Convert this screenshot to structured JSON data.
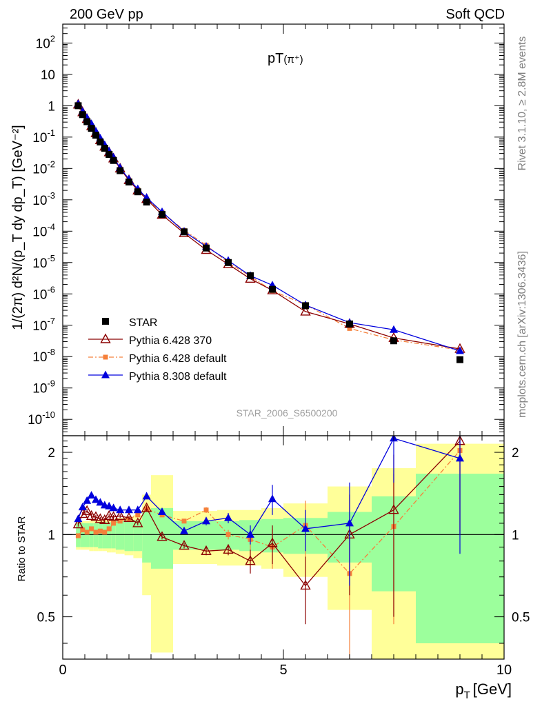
{
  "header": {
    "left": "200 GeV pp",
    "right": "Soft QCD"
  },
  "side_labels": {
    "top": "Rivet 3.1.10, ≥ 2.8M events",
    "bottom": "mcplots.cern.ch [arXiv:1306.3436]"
  },
  "watermark": "STAR_2006_S6500200",
  "chart_data": {
    "type": "scatter",
    "title": "pT(π⁺)",
    "title_main": "pT",
    "title_sub": "(π⁺)",
    "xlabel": "p",
    "xlabel_sub": "T",
    "xlabel_unit": "[GeV]",
    "ylabel": "1/(2π) d²N/(p_T dy dp_T) [GeV⁻²]",
    "ratio_ylabel": "Ratio to STAR",
    "xlim": [
      0,
      10
    ],
    "ylim_log": [
      3e-11,
      400
    ],
    "ratio_ylim": [
      0.35,
      2.3
    ],
    "x_ticks": [
      0,
      5,
      10
    ],
    "x_tick_labels": [
      "0",
      "5",
      "10"
    ],
    "y_ticks": [
      1e-10,
      1e-09,
      1e-08,
      1e-07,
      1e-06,
      1e-05,
      0.0001,
      0.001,
      0.01,
      0.1,
      1,
      10,
      100
    ],
    "y_tick_labels": [
      {
        "base": "10",
        "exp": "-10"
      },
      {
        "base": "10",
        "exp": "-9"
      },
      {
        "base": "10",
        "exp": "-8"
      },
      {
        "base": "10",
        "exp": "-7"
      },
      {
        "base": "10",
        "exp": "-6"
      },
      {
        "base": "10",
        "exp": "-5"
      },
      {
        "base": "10",
        "exp": "-4"
      },
      {
        "base": "10",
        "exp": "-3"
      },
      {
        "base": "10",
        "exp": "-2"
      },
      {
        "base": "10",
        "exp": "-1"
      },
      {
        "base": "1",
        "exp": ""
      },
      {
        "base": "10",
        "exp": ""
      },
      {
        "base": "10",
        "exp": "2"
      }
    ],
    "ratio_ticks": [
      0.5,
      1,
      2
    ],
    "ratio_tick_labels": [
      "0.5",
      "1",
      "2"
    ],
    "colors": {
      "star": "#000000",
      "p6_370": "#8b0000",
      "p6_default": "#f5803a",
      "p8": "#0000dd",
      "band_inner": "#9cff9c",
      "band_outer": "#ffff99"
    },
    "x": [
      0.35,
      0.45,
      0.55,
      0.65,
      0.75,
      0.85,
      0.95,
      1.05,
      1.15,
      1.3,
      1.5,
      1.7,
      1.9,
      2.25,
      2.75,
      3.25,
      3.75,
      4.25,
      4.75,
      5.5,
      6.5,
      7.5,
      9.0
    ],
    "bins": [
      [
        0.3,
        0.4
      ],
      [
        0.4,
        0.5
      ],
      [
        0.5,
        0.6
      ],
      [
        0.6,
        0.7
      ],
      [
        0.7,
        0.8
      ],
      [
        0.8,
        0.9
      ],
      [
        0.9,
        1.0
      ],
      [
        1.0,
        1.1
      ],
      [
        1.1,
        1.2
      ],
      [
        1.2,
        1.4
      ],
      [
        1.4,
        1.6
      ],
      [
        1.6,
        1.8
      ],
      [
        1.8,
        2.0
      ],
      [
        2.0,
        2.5
      ],
      [
        2.5,
        3.0
      ],
      [
        3.0,
        3.5
      ],
      [
        3.5,
        4.0
      ],
      [
        4.0,
        4.5
      ],
      [
        4.5,
        5.0
      ],
      [
        5.0,
        6.0
      ],
      [
        6.0,
        7.0
      ],
      [
        7.0,
        8.0
      ],
      [
        8.0,
        10.0
      ]
    ],
    "star_values": [
      1.0,
      0.52,
      0.31,
      0.19,
      0.115,
      0.07,
      0.044,
      0.028,
      0.018,
      0.0085,
      0.0037,
      0.0018,
      0.00085,
      0.00034,
      9.5e-05,
      2.9e-05,
      1e-05,
      3.8e-06,
      1.4e-06,
      4.2e-07,
      1.1e-07,
      3.2e-08,
      8e-09
    ],
    "band_inner": [
      [
        0.9,
        1.1
      ],
      [
        0.9,
        1.1
      ],
      [
        0.9,
        1.1
      ],
      [
        0.9,
        1.1
      ],
      [
        0.9,
        1.1
      ],
      [
        0.89,
        1.11
      ],
      [
        0.89,
        1.11
      ],
      [
        0.89,
        1.11
      ],
      [
        0.89,
        1.11
      ],
      [
        0.88,
        1.12
      ],
      [
        0.87,
        1.13
      ],
      [
        0.87,
        1.13
      ],
      [
        0.79,
        1.21
      ],
      [
        0.75,
        1.25
      ],
      [
        0.88,
        1.12
      ],
      [
        0.88,
        1.12
      ],
      [
        0.88,
        1.12
      ],
      [
        0.87,
        1.13
      ],
      [
        0.86,
        1.14
      ],
      [
        0.85,
        1.15
      ],
      [
        0.79,
        1.21
      ],
      [
        0.62,
        1.38
      ],
      [
        0.4,
        1.67
      ]
    ],
    "band_outer": [
      [
        0.88,
        1.12
      ],
      [
        0.88,
        1.12
      ],
      [
        0.88,
        1.12
      ],
      [
        0.87,
        1.13
      ],
      [
        0.87,
        1.13
      ],
      [
        0.87,
        1.13
      ],
      [
        0.87,
        1.13
      ],
      [
        0.86,
        1.14
      ],
      [
        0.86,
        1.14
      ],
      [
        0.85,
        1.15
      ],
      [
        0.84,
        1.16
      ],
      [
        0.82,
        1.18
      ],
      [
        0.6,
        1.4
      ],
      [
        0.37,
        1.65
      ],
      [
        0.78,
        1.22
      ],
      [
        0.78,
        1.22
      ],
      [
        0.77,
        1.23
      ],
      [
        0.77,
        1.23
      ],
      [
        0.75,
        1.25
      ],
      [
        0.7,
        1.3
      ],
      [
        0.53,
        1.5
      ],
      [
        0.3,
        1.75
      ],
      [
        0.3,
        2.15
      ]
    ],
    "series": [
      {
        "name": "STAR",
        "key": "star",
        "marker": "square",
        "line": "none",
        "ratio": [
          1,
          1,
          1,
          1,
          1,
          1,
          1,
          1,
          1,
          1,
          1,
          1,
          1,
          1,
          1,
          1,
          1,
          1,
          1,
          1,
          1,
          1,
          1
        ]
      },
      {
        "name": "Pythia 6.428 370",
        "key": "p6_370",
        "marker": "triangle-open",
        "line": "solid",
        "ratio": [
          1.09,
          1.19,
          1.22,
          1.17,
          1.16,
          1.14,
          1.13,
          1.17,
          1.16,
          1.17,
          1.15,
          1.1,
          1.25,
          0.98,
          0.91,
          0.87,
          0.88,
          0.8,
          0.93,
          0.65,
          1.0,
          1.23,
          2.2
        ],
        "ratio_err": [
          0.02,
          0.02,
          0.02,
          0.02,
          0.02,
          0.02,
          0.02,
          0.02,
          0.02,
          0.02,
          0.02,
          0.02,
          0.03,
          0.02,
          0.02,
          0.03,
          0.04,
          0.08,
          0.15,
          0.18,
          0.4,
          0.73,
          1.2
        ]
      },
      {
        "name": "Pythia 6.428 default",
        "key": "p6_default",
        "marker": "square-small",
        "line": "dashdot",
        "ratio": [
          0.99,
          1.04,
          1.02,
          1.05,
          1.02,
          1.03,
          1.02,
          1.05,
          1.1,
          1.12,
          1.14,
          1.18,
          1.24,
          1.18,
          1.12,
          1.23,
          1.0,
          0.96,
          0.9,
          1.08,
          0.72,
          1.07,
          2.03
        ],
        "ratio_err": [
          0.02,
          0.02,
          0.02,
          0.02,
          0.02,
          0.02,
          0.02,
          0.02,
          0.02,
          0.02,
          0.02,
          0.02,
          0.03,
          0.02,
          0.02,
          0.03,
          0.04,
          0.08,
          0.15,
          0.25,
          0.4,
          0.6,
          1.0
        ]
      },
      {
        "name": "Pythia 8.308 default",
        "key": "p8",
        "marker": "triangle-filled",
        "line": "solid",
        "ratio": [
          1.14,
          1.26,
          1.33,
          1.39,
          1.34,
          1.31,
          1.28,
          1.27,
          1.25,
          1.23,
          1.23,
          1.23,
          1.38,
          1.21,
          1.03,
          1.12,
          1.15,
          1.0,
          1.35,
          1.05,
          1.1,
          2.25,
          1.9
        ],
        "ratio_err": [
          0.02,
          0.02,
          0.02,
          0.02,
          0.02,
          0.02,
          0.02,
          0.02,
          0.02,
          0.02,
          0.02,
          0.02,
          0.03,
          0.02,
          0.02,
          0.04,
          0.05,
          0.08,
          0.17,
          0.18,
          0.45,
          0.7,
          1.05
        ]
      }
    ]
  }
}
